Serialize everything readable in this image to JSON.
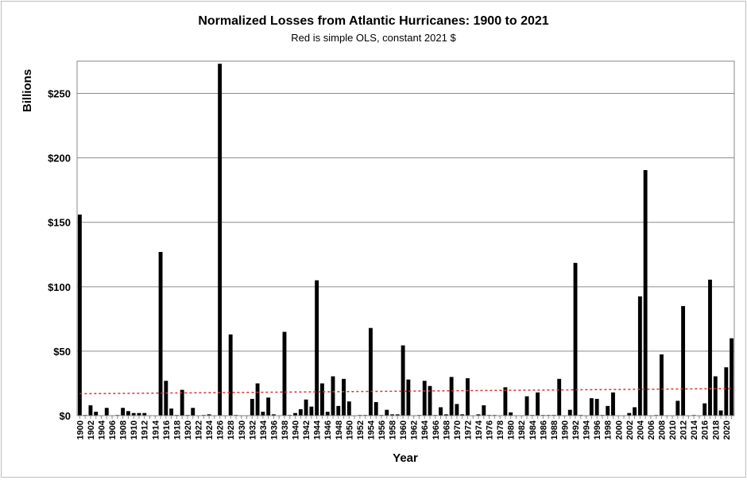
{
  "chart_data": {
    "type": "bar",
    "title": "Normalized Losses from Atlantic Hurricanes: 1900 to 2021",
    "subtitle": "Red is simple OLS, constant 2021 $",
    "xlabel": "Year",
    "ylabel": "Billions",
    "ylim": [
      0,
      275
    ],
    "yticks": [
      0,
      50,
      100,
      150,
      200,
      250
    ],
    "ytick_labels": [
      "$0",
      "$50",
      "$100",
      "$150",
      "$200",
      "$250"
    ],
    "grid": true,
    "bar_color": "#000000",
    "trend_color": "#e03030",
    "trend": {
      "x": [
        1900,
        2021
      ],
      "y": [
        17,
        21
      ]
    },
    "x_start": 1900,
    "values": [
      156,
      0.5,
      8,
      3,
      0,
      6,
      0,
      0.5,
      6,
      3.5,
      2,
      2,
      2,
      0,
      0,
      127,
      27,
      5.5,
      0.5,
      20,
      0.5,
      6,
      0,
      0.5,
      1,
      0,
      273,
      0,
      63,
      0.5,
      0,
      0,
      13,
      25,
      3,
      14,
      1,
      0,
      65,
      0.5,
      2,
      5,
      12.5,
      7,
      105,
      25,
      3,
      30.5,
      7.5,
      28.5,
      11,
      0,
      0.5,
      0.5,
      68,
      10.5,
      0.5,
      4.5,
      1,
      1,
      54.5,
      28,
      0,
      0.5,
      27,
      23,
      0.5,
      6.5,
      1,
      30,
      9,
      1,
      29,
      0,
      1,
      8,
      0.5,
      0.5,
      0,
      22,
      2.5,
      0,
      0,
      15,
      0.5,
      18,
      0.5,
      0.5,
      0.5,
      28.5,
      0,
      4.5,
      118.5,
      0.5,
      0,
      13.5,
      13,
      0.5,
      7.5,
      18,
      0,
      0,
      2,
      6.5,
      92.5,
      190.5,
      0,
      0.5,
      47.5,
      0,
      0,
      11.5,
      85,
      0,
      0.5,
      0,
      9.5,
      105.5,
      30.5,
      4,
      37.5,
      60
    ]
  }
}
